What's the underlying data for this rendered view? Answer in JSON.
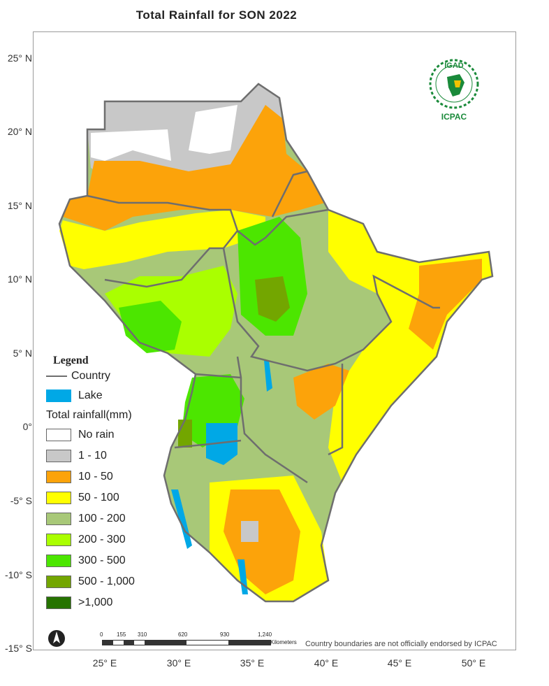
{
  "title": "Total  Rainfall for  SON  2022",
  "axes": {
    "y_ticks": [
      "25° N",
      "20° N",
      "15° N",
      "10° N",
      "5° N",
      "0°",
      "-5° S",
      "-10° S",
      "-15° S"
    ],
    "x_ticks": [
      "25° E",
      "30° E",
      "35° E",
      "40° E",
      "45° E",
      "50° E"
    ]
  },
  "legend": {
    "title": "Legend",
    "country_label": "Country",
    "lake_label": "Lake",
    "rainfall_title": "Total rainfall(mm)",
    "classes": [
      {
        "label": "No rain",
        "color": "#ffffff"
      },
      {
        "label": "1 - 10",
        "color": "#c8c8c8"
      },
      {
        "label": "10 - 50",
        "color": "#fca30a"
      },
      {
        "label": "50 - 100",
        "color": "#ffff00"
      },
      {
        "label": "100 - 200",
        "color": "#a8c878"
      },
      {
        "label": "200 - 300",
        "color": "#aaff00"
      },
      {
        "label": "300 - 500",
        "color": "#4ce600"
      },
      {
        "label": "500 - 1,000",
        "color": "#73a600"
      },
      {
        "label": ">1,000",
        "color": "#267300"
      }
    ],
    "lake_color": "#00a8e6",
    "country_color": "#6e6e6e"
  },
  "logo": {
    "top_text": "IGAD",
    "bottom_text": "ICPAC"
  },
  "scale_bar": {
    "labels": [
      "0",
      "155",
      "310",
      "620",
      "930",
      "1,240"
    ],
    "unit": "Kilometers"
  },
  "disclaimer": "Country boundaries are not officially endorsed by ICPAC",
  "icons": {
    "north_arrow": "north-arrow-icon"
  }
}
